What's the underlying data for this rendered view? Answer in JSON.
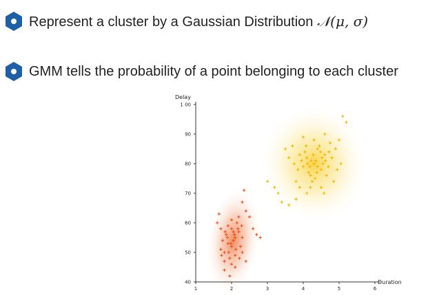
{
  "bullets": [
    {
      "text": "Represent a cluster by a Gaussian Distribution ",
      "math": "𝒩(μ, σ)"
    },
    {
      "text": "GMM tells the probability of a point belonging to each cluster",
      "math": ""
    }
  ],
  "icon": {
    "name": "hexagon-bullet-icon",
    "color": "#1f5fa8"
  },
  "chart_data": {
    "type": "scatter",
    "xlabel": "Duration",
    "ylabel": "Delay",
    "xlim": [
      1,
      6
    ],
    "ylim": [
      40,
      100
    ],
    "xticks": [
      "1",
      "2",
      "3",
      "4",
      "5",
      "6"
    ],
    "yticks": [
      "40",
      "50",
      "60",
      "70",
      "80",
      "90",
      "1 00"
    ],
    "series": [
      {
        "color": "#e8531c",
        "marker": "+",
        "ellipse": {
          "cx": 2.05,
          "cy": 54,
          "sx": 0.22,
          "sy": 5.5,
          "angle_deg": 8
        },
        "points": [
          [
            2.0,
            58
          ],
          [
            1.9,
            53
          ],
          [
            2.1,
            55
          ],
          [
            1.8,
            50
          ],
          [
            2.2,
            57
          ],
          [
            2.0,
            52
          ],
          [
            1.85,
            56
          ],
          [
            2.15,
            60
          ],
          [
            1.95,
            48
          ],
          [
            2.05,
            54
          ],
          [
            1.75,
            54
          ],
          [
            2.25,
            52
          ],
          [
            2.0,
            46
          ],
          [
            1.9,
            59
          ],
          [
            2.1,
            49
          ],
          [
            2.3,
            55
          ],
          [
            1.7,
            58
          ],
          [
            2.2,
            62
          ],
          [
            1.8,
            47
          ],
          [
            2.0,
            61
          ],
          [
            2.4,
            64
          ],
          [
            2.5,
            62
          ],
          [
            1.6,
            60
          ],
          [
            1.65,
            63
          ],
          [
            2.3,
            67
          ],
          [
            2.35,
            71
          ],
          [
            2.6,
            58
          ],
          [
            2.7,
            56
          ],
          [
            2.8,
            55
          ],
          [
            1.8,
            44
          ],
          [
            2.1,
            45
          ],
          [
            1.95,
            42
          ],
          [
            2.4,
            47
          ],
          [
            2.3,
            50
          ],
          [
            1.7,
            51
          ],
          [
            2.05,
            57
          ],
          [
            1.88,
            55
          ],
          [
            2.12,
            51
          ],
          [
            2.18,
            58
          ],
          [
            1.92,
            50
          ],
          [
            1.98,
            53
          ],
          [
            2.08,
            56
          ],
          [
            1.82,
            57
          ],
          [
            2.28,
            59
          ],
          [
            1.72,
            49
          ],
          [
            2.22,
            48
          ]
        ]
      },
      {
        "color": "#f2b600",
        "marker": "+",
        "ellipse": {
          "cx": 4.3,
          "cy": 80,
          "sx": 0.45,
          "sy": 6.0,
          "angle_deg": -8
        },
        "points": [
          [
            4.3,
            80
          ],
          [
            4.1,
            82
          ],
          [
            4.5,
            78
          ],
          [
            4.2,
            76
          ],
          [
            4.6,
            83
          ],
          [
            4.0,
            79
          ],
          [
            4.4,
            85
          ],
          [
            4.35,
            81
          ],
          [
            4.15,
            77
          ],
          [
            4.55,
            80
          ],
          [
            3.9,
            83
          ],
          [
            4.7,
            79
          ],
          [
            4.25,
            74
          ],
          [
            4.45,
            86
          ],
          [
            4.05,
            84
          ],
          [
            4.65,
            76
          ],
          [
            3.85,
            78
          ],
          [
            4.8,
            82
          ],
          [
            4.3,
            88
          ],
          [
            4.2,
            72
          ],
          [
            3.8,
            74
          ],
          [
            4.9,
            85
          ],
          [
            4.0,
            89
          ],
          [
            4.6,
            90
          ],
          [
            3.7,
            86
          ],
          [
            3.5,
            85
          ],
          [
            4.75,
            87
          ],
          [
            5.0,
            88
          ],
          [
            5.2,
            94
          ],
          [
            5.1,
            96
          ],
          [
            3.3,
            70
          ],
          [
            3.4,
            67
          ],
          [
            3.2,
            72
          ],
          [
            3.6,
            66
          ],
          [
            3.0,
            74
          ],
          [
            3.9,
            72
          ],
          [
            4.1,
            70
          ],
          [
            4.5,
            72
          ],
          [
            3.8,
            68
          ],
          [
            4.95,
            78
          ],
          [
            5.05,
            80
          ],
          [
            4.85,
            74
          ],
          [
            4.4,
            79
          ],
          [
            4.28,
            83
          ],
          [
            4.12,
            80
          ],
          [
            4.52,
            82
          ],
          [
            4.38,
            77
          ],
          [
            4.22,
            81
          ],
          [
            4.48,
            84
          ],
          [
            4.18,
            79
          ],
          [
            3.95,
            81
          ],
          [
            4.62,
            81
          ],
          [
            4.33,
            75
          ],
          [
            4.08,
            86
          ],
          [
            4.72,
            84
          ],
          [
            3.75,
            80
          ],
          [
            3.6,
            82
          ],
          [
            4.58,
            70
          ]
        ]
      }
    ]
  }
}
